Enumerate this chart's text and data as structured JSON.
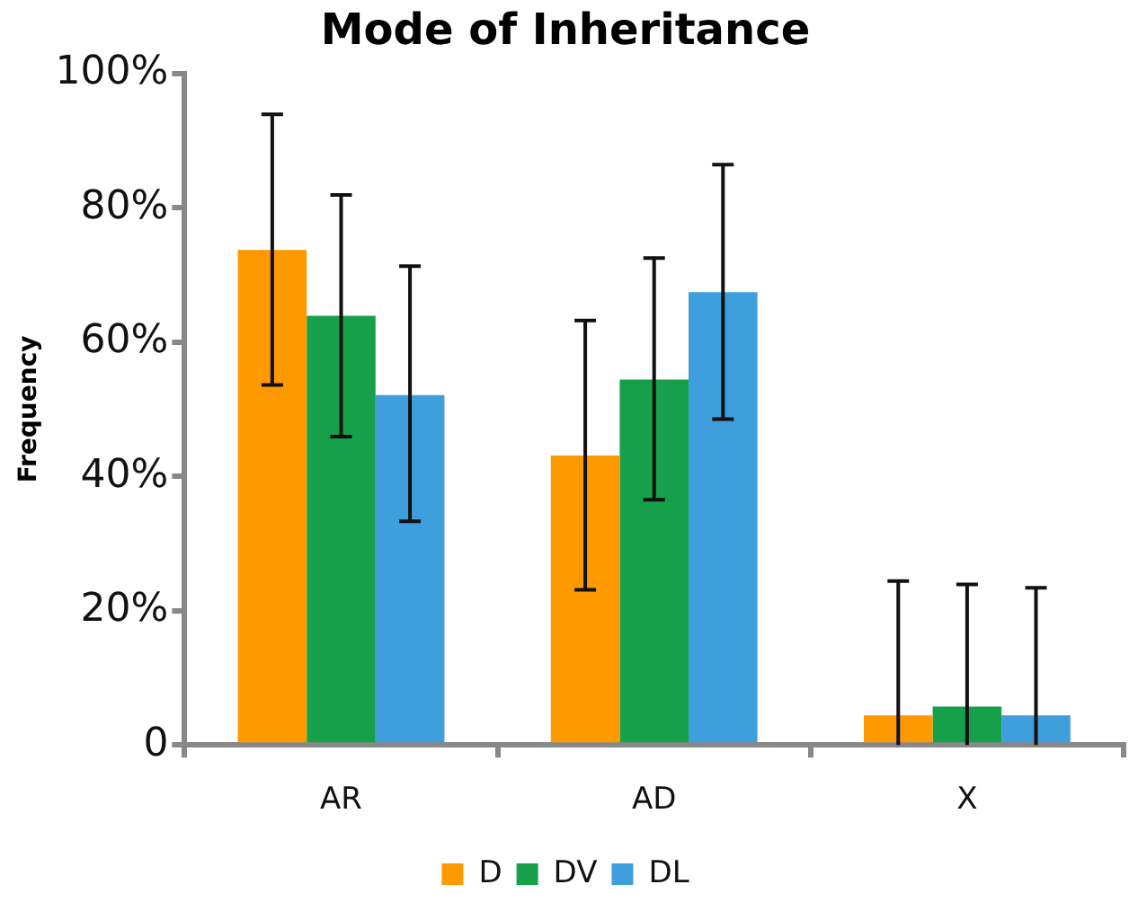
{
  "chart_data": {
    "type": "bar",
    "title": "Mode of Inheritance",
    "ylabel": "Frequency",
    "categories": [
      "AR",
      "AD",
      "X"
    ],
    "series": [
      {
        "name": "D",
        "color": "#ff9900",
        "values": [
          73.7,
          43.1,
          4.4
        ],
        "errors": [
          [
            53.6,
            93.9
          ],
          [
            23.1,
            63.2
          ],
          [
            0,
            24.4
          ]
        ]
      },
      {
        "name": "DV",
        "color": "#16a04a",
        "values": [
          63.9,
          54.4,
          5.7
        ],
        "errors": [
          [
            45.9,
            81.9
          ],
          [
            36.5,
            72.5
          ],
          [
            0,
            23.9
          ]
        ]
      },
      {
        "name": "DL",
        "color": "#3e9fdc",
        "values": [
          52.1,
          67.4,
          4.4
        ],
        "errors": [
          [
            33.3,
            71.3
          ],
          [
            48.5,
            86.4
          ],
          [
            0,
            23.4
          ]
        ]
      }
    ],
    "ylim": [
      0,
      100
    ],
    "yticks": [
      {
        "value": 0,
        "label": "0"
      },
      {
        "value": 20,
        "label": "20%"
      },
      {
        "value": 40,
        "label": "40%"
      },
      {
        "value": 60,
        "label": "60%"
      },
      {
        "value": 80,
        "label": "80%"
      },
      {
        "value": 100,
        "label": "100%"
      }
    ],
    "grid": false,
    "legend": "bottom"
  }
}
